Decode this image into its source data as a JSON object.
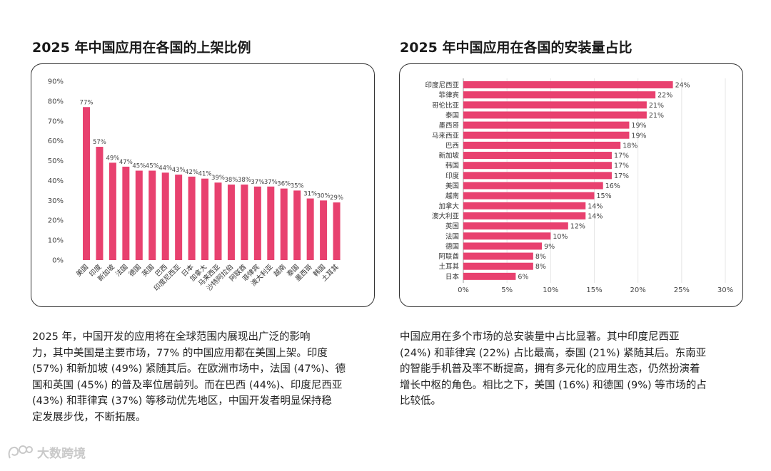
{
  "left": {
    "title": "2025 年中国应用在各国的上架比例",
    "paragraph": "2025 年，中国开发的应用将在全球范围内展现出广泛的影响\n力，其中美国是主要市场，77% 的中国应用都在美国上架。印度\n(57%) 和新加坡 (49%) 紧随其后。在欧洲市场中，法国 (47%)、德\n国和英国 (45%) 的普及率位居前列。而在巴西 (44%)、印度尼西亚\n(43%) 和菲律宾 (37%) 等移动优先地区，中国开发者明显保持稳\n定发展步伐，不断拓展。"
  },
  "right": {
    "title": "2025 年中国应用在各国的安装量占比",
    "paragraph": "中国应用在多个市场的总安装量中占比显著。其中印度尼西亚\n(24%) 和菲律宾 (22%) 占比最高，泰国 (21%) 紧随其后。东南亚\n的智能手机普及率不断提高，拥有多元化的应用生态，仍然扮演着\n增长中枢的角色。相比之下，美国 (16%) 和德国 (9%) 等市场的占\n比较低。"
  },
  "watermark": {
    "text": "大数跨境"
  },
  "colors": {
    "bar": "#e8416f",
    "grid": "#e6e6e6",
    "axis_text": "#444444"
  },
  "chart_data": [
    {
      "type": "bar",
      "orientation": "vertical",
      "title": "2025 年中国应用在各国的上架比例",
      "categories": [
        "美国",
        "印度",
        "新加坡",
        "法国",
        "德国",
        "英国",
        "巴西",
        "印度尼西亚",
        "日本",
        "加拿大",
        "马来西亚",
        "沙特阿拉伯",
        "阿联酋",
        "菲律宾",
        "澳大利亚",
        "越南",
        "泰国",
        "墨西哥",
        "韩国",
        "土耳其"
      ],
      "values": [
        77,
        57,
        49,
        47,
        45,
        45,
        44,
        43,
        42,
        41,
        39,
        38,
        38,
        37,
        37,
        36,
        35,
        31,
        30,
        29
      ],
      "ylim": [
        0,
        90
      ],
      "yticks": [
        0,
        10,
        20,
        30,
        40,
        50,
        60,
        70,
        80,
        90
      ],
      "tick_suffix": "%",
      "value_suffix": "%",
      "grid": false
    },
    {
      "type": "bar",
      "orientation": "horizontal",
      "title": "2025 年中国应用在各国的安装量占比",
      "categories": [
        "印度尼西亚",
        "菲律宾",
        "哥伦比亚",
        "泰国",
        "墨西哥",
        "马来西亚",
        "巴西",
        "新加坡",
        "韩国",
        "印度",
        "美国",
        "越南",
        "加拿大",
        "澳大利亚",
        "英国",
        "法国",
        "德国",
        "阿联酋",
        "土耳其",
        "日本"
      ],
      "values": [
        24,
        22,
        21,
        21,
        19,
        19,
        18,
        17,
        17,
        17,
        16,
        15,
        14,
        14,
        12,
        10,
        9,
        8,
        8,
        6
      ],
      "xlim": [
        0,
        30
      ],
      "xticks": [
        0,
        5,
        10,
        15,
        20,
        25,
        30
      ],
      "tick_suffix": "%",
      "value_suffix": "%",
      "grid": true
    }
  ]
}
